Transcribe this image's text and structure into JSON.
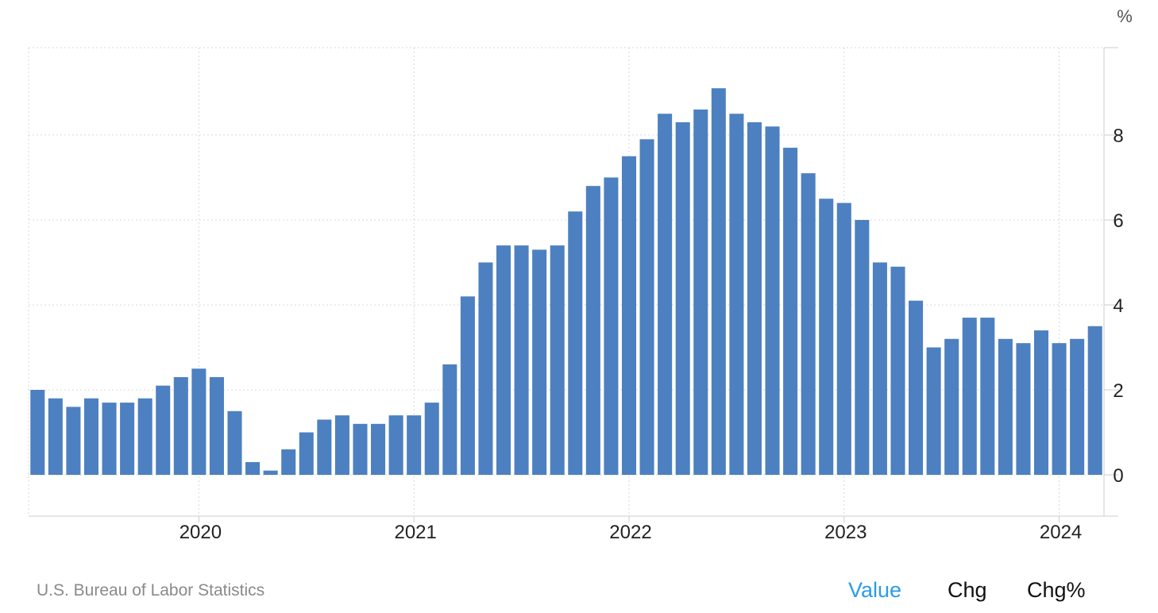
{
  "source": "U.S. Bureau of Labor Statistics",
  "toggles": {
    "value": "Value",
    "chg": "Chg",
    "chgpct": "Chg%",
    "active": "value"
  },
  "colors": {
    "bar": "#4d80c0",
    "grid": "#d8d8d8",
    "accent": "#2b9be8"
  },
  "chart_data": {
    "type": "bar",
    "unit": "%",
    "ylim": [
      -1,
      10
    ],
    "yticks": [
      0,
      2,
      4,
      6,
      8
    ],
    "xticks": [
      "2020",
      "2021",
      "2022",
      "2023",
      "2024"
    ],
    "grid": true,
    "categories": [
      "2019-04",
      "2019-05",
      "2019-06",
      "2019-07",
      "2019-08",
      "2019-09",
      "2019-10",
      "2019-11",
      "2019-12",
      "2020-01",
      "2020-02",
      "2020-03",
      "2020-04",
      "2020-05",
      "2020-06",
      "2020-07",
      "2020-08",
      "2020-09",
      "2020-10",
      "2020-11",
      "2020-12",
      "2021-01",
      "2021-02",
      "2021-03",
      "2021-04",
      "2021-05",
      "2021-06",
      "2021-07",
      "2021-08",
      "2021-09",
      "2021-10",
      "2021-11",
      "2021-12",
      "2022-01",
      "2022-02",
      "2022-03",
      "2022-04",
      "2022-05",
      "2022-06",
      "2022-07",
      "2022-08",
      "2022-09",
      "2022-10",
      "2022-11",
      "2022-12",
      "2023-01",
      "2023-02",
      "2023-03",
      "2023-04",
      "2023-05",
      "2023-06",
      "2023-07",
      "2023-08",
      "2023-09",
      "2023-10",
      "2023-11",
      "2023-12",
      "2024-01",
      "2024-02",
      "2024-03"
    ],
    "values": [
      2.0,
      1.8,
      1.6,
      1.8,
      1.7,
      1.7,
      1.8,
      2.1,
      2.3,
      2.5,
      2.3,
      1.5,
      0.3,
      0.1,
      0.6,
      1.0,
      1.3,
      1.4,
      1.2,
      1.2,
      1.4,
      1.4,
      1.7,
      2.6,
      4.2,
      5.0,
      5.4,
      5.4,
      5.3,
      5.4,
      6.2,
      6.8,
      7.0,
      7.5,
      7.9,
      8.5,
      8.3,
      8.6,
      9.1,
      8.5,
      8.3,
      8.2,
      7.7,
      7.1,
      6.5,
      6.4,
      6.0,
      5.0,
      4.9,
      4.1,
      3.0,
      3.2,
      3.7,
      3.7,
      3.2,
      3.1,
      3.4,
      3.1,
      3.2,
      3.5
    ]
  }
}
